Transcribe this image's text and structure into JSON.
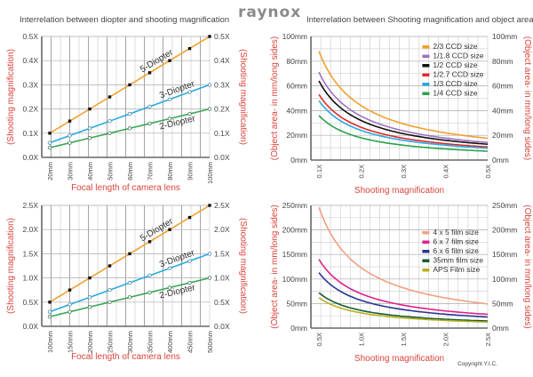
{
  "header": {
    "logo": "raynox",
    "copyright": "Copyright Y.I.C."
  },
  "chart_data": [
    {
      "id": "diopter_short",
      "type": "line",
      "title": "Interrelation between diopter and shooting magnification",
      "xlabel": "Focal length of camera lens",
      "ylabel": "(Shooting magnification)",
      "ylabel_right": "(Shooting magnification)",
      "categories": [
        "20mm",
        "30mm",
        "40mm",
        "50mm",
        "60mm",
        "70mm",
        "80mm",
        "90mm",
        "100mm"
      ],
      "ylim": [
        0,
        0.5
      ],
      "yticks": [
        "0.0X",
        "0.1X",
        "0.2X",
        "0.3X",
        "0.4X",
        "0.5X"
      ],
      "grid": true,
      "series": [
        {
          "name": "5-Diopter",
          "color": "#f0a030",
          "marker": "filled",
          "values": [
            0.1,
            0.15,
            0.2,
            0.25,
            0.3,
            0.35,
            0.4,
            0.45,
            0.5
          ]
        },
        {
          "name": "3-Diopter",
          "color": "#29a9e0",
          "marker": "open",
          "values": [
            0.06,
            0.09,
            0.12,
            0.15,
            0.18,
            0.21,
            0.24,
            0.27,
            0.3
          ]
        },
        {
          "name": "2-Diopter",
          "color": "#3aa655",
          "marker": "open",
          "values": [
            0.04,
            0.06,
            0.08,
            0.1,
            0.12,
            0.14,
            0.16,
            0.18,
            0.2
          ]
        }
      ]
    },
    {
      "id": "diopter_long",
      "type": "line",
      "title": "",
      "xlabel": "Focal length of camera lens",
      "ylabel": "(Shooting magnification)",
      "ylabel_right": "(Shooting magnification)",
      "categories": [
        "100mm",
        "150mm",
        "200mm",
        "250mm",
        "300mm",
        "350mm",
        "400mm",
        "450mm",
        "500mm"
      ],
      "ylim": [
        0,
        2.5
      ],
      "yticks": [
        "0.0X",
        "0.5X",
        "1.0X",
        "1.5X",
        "2.0X",
        "2.5X"
      ],
      "grid": true,
      "series": [
        {
          "name": "5-Diopter",
          "color": "#f0a030",
          "marker": "filled",
          "values": [
            0.5,
            0.75,
            1.0,
            1.25,
            1.5,
            1.75,
            2.0,
            2.25,
            2.5
          ]
        },
        {
          "name": "3-Diopter",
          "color": "#29a9e0",
          "marker": "open",
          "values": [
            0.3,
            0.45,
            0.6,
            0.75,
            0.9,
            1.05,
            1.2,
            1.35,
            1.5
          ]
        },
        {
          "name": "2-Diopter",
          "color": "#3aa655",
          "marker": "open",
          "values": [
            0.2,
            0.3,
            0.4,
            0.5,
            0.6,
            0.7,
            0.8,
            0.9,
            1.0
          ]
        }
      ]
    },
    {
      "id": "ccd_area",
      "type": "line",
      "title": "Interrelation between Shooting magnification and object area",
      "xlabel": "Shooting magnification",
      "ylabel": "(Object area- in mm/long sides)",
      "ylabel_right": "(Object area- in mm/long sides)",
      "xlim": [
        0.1,
        0.5
      ],
      "xticks": [
        "0.1X",
        "0.2X",
        "0.3X",
        "0.4X",
        "0.5X"
      ],
      "ylim": [
        0,
        100
      ],
      "yticks": [
        "0mm",
        "20mm",
        "40mm",
        "60mm",
        "80mm",
        "100mm"
      ],
      "grid": true,
      "legend": "top-right",
      "series": [
        {
          "name": "2/3 CCD size",
          "color": "#f0a030",
          "sensor_mm": 8.8
        },
        {
          "name": "1/1.8 CCD size",
          "color": "#a070c0",
          "sensor_mm": 7.1
        },
        {
          "name": "1/2 CCD size",
          "color": "#111111",
          "sensor_mm": 6.4
        },
        {
          "name": "1/2.7 CCD size",
          "color": "#e02828",
          "sensor_mm": 5.3
        },
        {
          "name": "1/3 CCD size",
          "color": "#29a9e0",
          "sensor_mm": 4.8
        },
        {
          "name": "1/4 CCD size",
          "color": "#2aa050",
          "sensor_mm": 3.6
        }
      ]
    },
    {
      "id": "film_area",
      "type": "line",
      "title": "",
      "xlabel": "Shooting magnification",
      "ylabel": "(Object area- in mm/long sides)",
      "ylabel_right": "(Object area- in mm/long sides)",
      "xlim": [
        0.5,
        2.5
      ],
      "xticks": [
        "0.5X",
        "1.0X",
        "1.5X",
        "2.0X",
        "2.5X"
      ],
      "ylim": [
        0,
        250
      ],
      "yticks": [
        "0mm",
        "50mm",
        "100mm",
        "150mm",
        "200mm",
        "250mm"
      ],
      "grid": true,
      "legend": "top-right",
      "series": [
        {
          "name": "4 x 5 film size",
          "color": "#f0a080",
          "sensor_mm": 123
        },
        {
          "name": "6 x 7 film size",
          "color": "#e0208a",
          "sensor_mm": 70
        },
        {
          "name": "6 x 6 film size",
          "color": "#2a3590",
          "sensor_mm": 56.5
        },
        {
          "name": "35mm film size",
          "color": "#1a5a30",
          "sensor_mm": 36
        },
        {
          "name": "APS Film size",
          "color": "#b8b020",
          "sensor_mm": 31
        }
      ]
    }
  ]
}
